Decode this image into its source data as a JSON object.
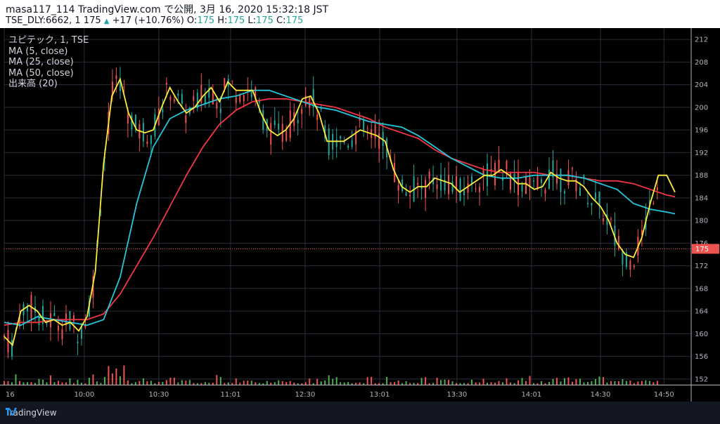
{
  "header": {
    "title": "masa117_114 TradingView.com で公開, 3月 16, 2020 15:32:18 JST",
    "symbol_line": "TSE_DLY:6662, 1",
    "last": "175",
    "arrow": "▲",
    "change": "+17 (+10.76%)",
    "o_label": "O:",
    "o": "175",
    "h_label": "H:",
    "h": "175",
    "l_label": "L:",
    "l": "175",
    "c_label": "C:",
    "c": "175"
  },
  "legend": {
    "symbol": "ユピテック, 1, TSE",
    "ma5": "MA (5, close)",
    "ma25": "MA (25, close)",
    "ma50": "MA (50, close)",
    "volume": "出来高 (20)"
  },
  "footer": {
    "brand": "TradingView"
  },
  "colors": {
    "up": "#ef5350",
    "down": "#26a69a",
    "ma5": "#ffeb3b",
    "ma25": "#26c6da",
    "ma50": "#f23645",
    "vol_up": "#ef5350",
    "vol_down": "#4caf50",
    "grid": "#2a2e39",
    "bg": "#000000"
  },
  "chart_data": {
    "type": "line",
    "y_ticks": [
      "212",
      "208",
      "204",
      "200",
      "196",
      "192",
      "188",
      "184",
      "180",
      "176",
      "172",
      "168",
      "164",
      "160",
      "156",
      "152"
    ],
    "x_ticks": [
      "16",
      "10:00",
      "10:30",
      "11:01",
      "12:30",
      "13:01",
      "13:30",
      "14:01",
      "14:30",
      "14:50"
    ],
    "current_price": "175",
    "ylim": [
      151,
      214
    ],
    "series": [
      {
        "name": "MA (5, close)",
        "x": [
          0,
          3,
          6,
          9,
          12,
          15,
          18,
          21,
          24,
          27,
          30,
          33,
          36,
          39,
          42,
          45,
          48,
          51,
          54,
          57,
          60,
          63,
          66,
          69,
          72,
          75,
          78,
          81,
          84,
          87,
          90,
          93,
          96,
          99,
          102,
          105,
          108,
          111,
          114,
          117,
          120,
          123,
          126,
          129,
          132,
          135,
          138,
          141,
          144,
          147,
          150,
          153,
          156,
          159,
          162,
          165,
          168,
          171,
          174,
          177,
          180,
          183,
          186,
          189,
          192,
          195,
          198,
          201,
          204,
          207,
          210,
          213,
          216,
          219,
          222,
          225,
          228,
          231,
          234,
          237,
          240,
          243
        ],
        "values": [
          159.5,
          158,
          164,
          165,
          164,
          162,
          162.5,
          161.5,
          162,
          160.5,
          163,
          171,
          190,
          202,
          205,
          199,
          196,
          195.5,
          196,
          200,
          203.5,
          201,
          199,
          200,
          202,
          203.5,
          201,
          204.5,
          203,
          203,
          203,
          199,
          196,
          195,
          196,
          198,
          201.5,
          202,
          199,
          194,
          194,
          194,
          195,
          196,
          195.5,
          195,
          194,
          189,
          186,
          185,
          186,
          186,
          187.5,
          187,
          186.5,
          185,
          186,
          187,
          188,
          188,
          189,
          188,
          186.5,
          186.5,
          185.5,
          186,
          188.5,
          187.5,
          187,
          187,
          186,
          184,
          182.5,
          180,
          176,
          174,
          173.5,
          177,
          183,
          188,
          188,
          185
        ]
      },
      {
        "name": "MA (25, close)",
        "x": [
          0,
          6,
          12,
          18,
          24,
          30,
          36,
          42,
          48,
          54,
          60,
          66,
          72,
          78,
          84,
          90,
          96,
          102,
          108,
          114,
          120,
          126,
          132,
          138,
          144,
          150,
          156,
          162,
          168,
          174,
          180,
          186,
          192,
          198,
          204,
          210,
          216,
          222,
          228,
          234,
          240,
          243
        ],
        "values": [
          162,
          161.5,
          163,
          162.5,
          162,
          161.5,
          162.5,
          170,
          183,
          193,
          198,
          199.5,
          200.5,
          201.5,
          202,
          203,
          203,
          202,
          201,
          200,
          199.5,
          198.5,
          197.5,
          197,
          196.5,
          195,
          193,
          191,
          189.5,
          188,
          187.5,
          187.5,
          188,
          188,
          188,
          187.5,
          186.5,
          185.5,
          183,
          182,
          181.5,
          181.2
        ]
      },
      {
        "name": "MA (50, close)",
        "x": [
          0,
          6,
          12,
          18,
          24,
          30,
          36,
          42,
          48,
          54,
          60,
          66,
          72,
          78,
          84,
          90,
          96,
          102,
          108,
          114,
          120,
          126,
          132,
          138,
          144,
          150,
          156,
          162,
          168,
          174,
          180,
          186,
          192,
          198,
          204,
          210,
          216,
          222,
          228,
          234,
          240,
          243
        ],
        "values": [
          161.5,
          162,
          162,
          162.5,
          162.5,
          162.5,
          163.5,
          167,
          172,
          177,
          182.5,
          188,
          193,
          197,
          199.5,
          201,
          201.5,
          201.5,
          201,
          200.5,
          200,
          199,
          198,
          196.5,
          195.5,
          194.5,
          192.5,
          191,
          190,
          189,
          188.5,
          188.5,
          188.5,
          188,
          188,
          187.5,
          187,
          187,
          186.5,
          185.5,
          184.5,
          184.2
        ]
      }
    ]
  }
}
